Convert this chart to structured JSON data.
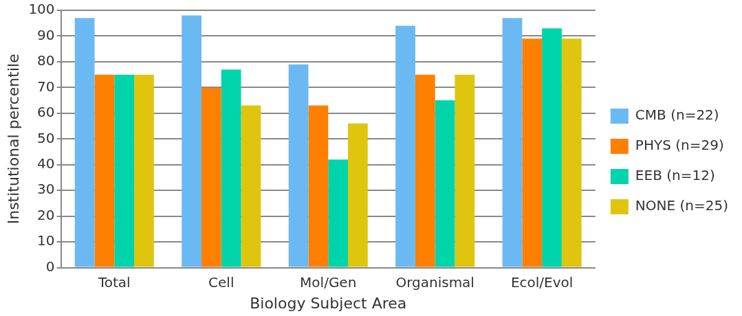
{
  "chart_data": {
    "type": "bar",
    "xlabel": "Biology Subject Area",
    "ylabel": "Institutional percentile",
    "categories": [
      "Total",
      "Cell",
      "Mol/Gen",
      "Organismal",
      "Ecol/Evol"
    ],
    "series": [
      {
        "name": "CMB (n=22)",
        "color": "#6ab9f2",
        "values": [
          97,
          98,
          79,
          94,
          97
        ]
      },
      {
        "name": "PHYS (n=29)",
        "color": "#ff7f00",
        "values": [
          75,
          70,
          63,
          75,
          89
        ]
      },
      {
        "name": "EEB (n=12)",
        "color": "#00d4ab",
        "values": [
          75,
          77,
          42,
          65,
          93
        ]
      },
      {
        "name": "NONE (n=25)",
        "color": "#dfc50e",
        "values": [
          75,
          63,
          56,
          75,
          89
        ]
      }
    ],
    "ylim": [
      0,
      100
    ],
    "yticks": [
      0,
      10,
      20,
      30,
      40,
      50,
      60,
      70,
      80,
      90,
      100
    ],
    "grid": "y",
    "legend": "right"
  }
}
